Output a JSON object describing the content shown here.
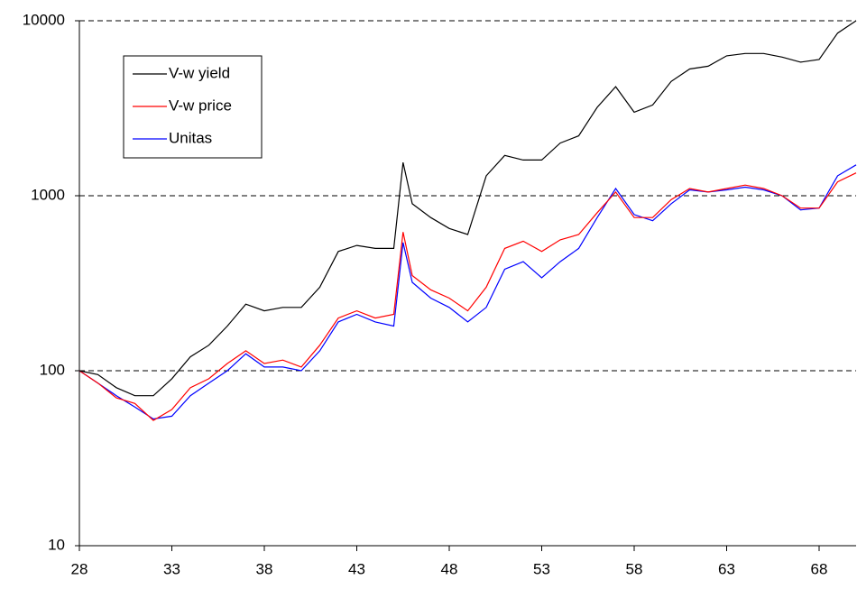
{
  "chart_data": {
    "type": "line",
    "x": [
      28,
      29,
      30,
      31,
      32,
      33,
      34,
      35,
      36,
      37,
      38,
      39,
      40,
      41,
      42,
      43,
      44,
      45,
      45.5,
      46,
      47,
      48,
      49,
      50,
      51,
      52,
      53,
      54,
      55,
      56,
      57,
      58,
      59,
      60,
      61,
      62,
      63,
      64,
      65,
      66,
      67,
      68,
      69,
      70
    ],
    "series": [
      {
        "name": "V-w yield",
        "color": "#000000",
        "values": [
          100,
          95,
          80,
          72,
          72,
          90,
          120,
          140,
          180,
          240,
          220,
          230,
          230,
          300,
          480,
          520,
          500,
          500,
          1550,
          900,
          750,
          650,
          600,
          1300,
          1700,
          1600,
          1600,
          2000,
          2200,
          3200,
          4200,
          3000,
          3300,
          4500,
          5300,
          5500,
          6300,
          6500,
          6500,
          6200,
          5800,
          6000,
          8500,
          10000
        ]
      },
      {
        "name": "V-w price",
        "color": "#ff0000",
        "values": [
          100,
          85,
          70,
          65,
          52,
          60,
          80,
          90,
          110,
          130,
          110,
          115,
          105,
          140,
          200,
          220,
          200,
          210,
          620,
          350,
          290,
          260,
          220,
          300,
          500,
          550,
          480,
          560,
          600,
          800,
          1050,
          750,
          750,
          950,
          1100,
          1050,
          1100,
          1150,
          1100,
          1000,
          850,
          850,
          1200,
          1350
        ]
      },
      {
        "name": "Unitas",
        "color": "#0000ff",
        "values": [
          100,
          85,
          72,
          62,
          53,
          55,
          72,
          85,
          100,
          125,
          105,
          105,
          100,
          130,
          190,
          210,
          190,
          180,
          540,
          320,
          260,
          230,
          190,
          230,
          380,
          420,
          340,
          420,
          500,
          750,
          1100,
          780,
          720,
          900,
          1080,
          1050,
          1080,
          1120,
          1080,
          1000,
          830,
          850,
          1300,
          1500
        ]
      }
    ],
    "xlim": [
      28,
      70
    ],
    "xticks": [
      28,
      33,
      38,
      43,
      48,
      53,
      58,
      63,
      68
    ],
    "ylim": [
      10,
      10000
    ],
    "yticks": [
      10,
      100,
      1000,
      10000
    ],
    "log_y": true,
    "grid": true,
    "legend": "upper left"
  }
}
